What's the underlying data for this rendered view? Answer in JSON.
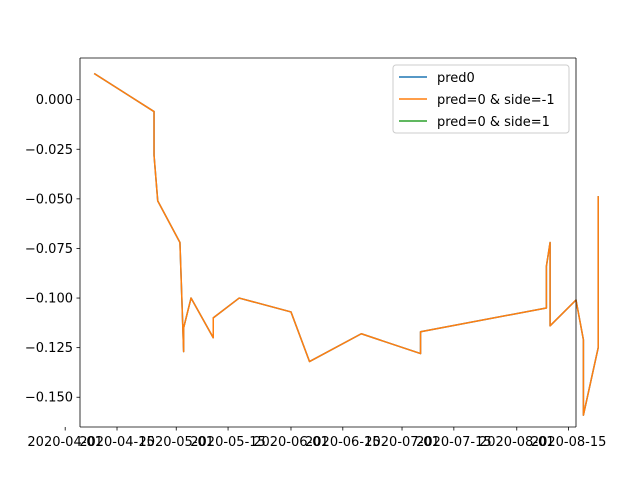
{
  "chart_data": {
    "type": "line",
    "title": "",
    "xlabel": "",
    "ylabel": "",
    "grid": false,
    "legend_position": "top-right",
    "xlim": [
      "2020-04-05",
      "2020-08-17"
    ],
    "ylim": [
      -0.165,
      0.021
    ],
    "x_ticks": [
      {
        "date": "2020-04-01",
        "label": "2020-04-01"
      },
      {
        "date": "2020-04-15",
        "label": "2020-04-15"
      },
      {
        "date": "2020-05-01",
        "label": "2020-05-01"
      },
      {
        "date": "2020-05-15",
        "label": "2020-05-15"
      },
      {
        "date": "2020-06-01",
        "label": "2020-06-01"
      },
      {
        "date": "2020-06-15",
        "label": "2020-06-15"
      },
      {
        "date": "2020-07-01",
        "label": "2020-07-01"
      },
      {
        "date": "2020-07-15",
        "label": "2020-07-15"
      },
      {
        "date": "2020-08-01",
        "label": "2020-08-01"
      },
      {
        "date": "2020-08-15",
        "label": "2020-08-15"
      }
    ],
    "y_ticks": [
      {
        "value": 0.0,
        "label": "0.000"
      },
      {
        "value": -0.025,
        "label": "−0.025"
      },
      {
        "value": -0.05,
        "label": "−0.050"
      },
      {
        "value": -0.075,
        "label": "−0.075"
      },
      {
        "value": -0.1,
        "label": "−0.100"
      },
      {
        "value": -0.125,
        "label": "−0.125"
      },
      {
        "value": -0.15,
        "label": "−0.150"
      }
    ],
    "series": [
      {
        "name": "pred0",
        "color": "#1f77b4",
        "points": [
          {
            "x": "2020-04-09",
            "y": 0.013
          },
          {
            "x": "2020-04-25",
            "y": -0.006
          },
          {
            "x": "2020-04-25",
            "y": -0.028
          },
          {
            "x": "2020-04-26",
            "y": -0.051
          },
          {
            "x": "2020-05-02",
            "y": -0.072
          },
          {
            "x": "2020-05-03",
            "y": -0.127
          },
          {
            "x": "2020-05-03",
            "y": -0.115
          },
          {
            "x": "2020-05-05",
            "y": -0.1
          },
          {
            "x": "2020-05-11",
            "y": -0.12
          },
          {
            "x": "2020-05-11",
            "y": -0.11
          },
          {
            "x": "2020-05-18",
            "y": -0.1
          },
          {
            "x": "2020-06-01",
            "y": -0.107
          },
          {
            "x": "2020-06-06",
            "y": -0.132
          },
          {
            "x": "2020-06-20",
            "y": -0.118
          },
          {
            "x": "2020-07-06",
            "y": -0.128
          },
          {
            "x": "2020-07-06",
            "y": -0.117
          },
          {
            "x": "2020-08-09",
            "y": -0.105
          },
          {
            "x": "2020-08-09",
            "y": -0.084
          },
          {
            "x": "2020-08-10",
            "y": -0.072
          },
          {
            "x": "2020-08-10",
            "y": -0.098
          },
          {
            "x": "2020-08-10",
            "y": -0.085
          },
          {
            "x": "2020-08-10",
            "y": -0.114
          },
          {
            "x": "2020-08-17",
            "y": -0.101
          },
          {
            "x": "2020-08-19",
            "y": -0.121
          },
          {
            "x": "2020-08-19",
            "y": -0.159
          },
          {
            "x": "2020-08-23",
            "y": -0.125
          },
          {
            "x": "2020-08-23",
            "y": -0.049
          }
        ]
      },
      {
        "name": "pred=0 & side=-1",
        "color": "#ff7f0e",
        "points": [
          {
            "x": "2020-04-09",
            "y": 0.013
          },
          {
            "x": "2020-04-25",
            "y": -0.006
          },
          {
            "x": "2020-04-25",
            "y": -0.028
          },
          {
            "x": "2020-04-26",
            "y": -0.051
          },
          {
            "x": "2020-05-02",
            "y": -0.072
          },
          {
            "x": "2020-05-03",
            "y": -0.127
          },
          {
            "x": "2020-05-03",
            "y": -0.115
          },
          {
            "x": "2020-05-05",
            "y": -0.1
          },
          {
            "x": "2020-05-11",
            "y": -0.12
          },
          {
            "x": "2020-05-11",
            "y": -0.11
          },
          {
            "x": "2020-05-18",
            "y": -0.1
          },
          {
            "x": "2020-06-01",
            "y": -0.107
          },
          {
            "x": "2020-06-06",
            "y": -0.132
          },
          {
            "x": "2020-06-20",
            "y": -0.118
          },
          {
            "x": "2020-07-06",
            "y": -0.128
          },
          {
            "x": "2020-07-06",
            "y": -0.117
          },
          {
            "x": "2020-08-09",
            "y": -0.105
          },
          {
            "x": "2020-08-09",
            "y": -0.084
          },
          {
            "x": "2020-08-10",
            "y": -0.072
          },
          {
            "x": "2020-08-10",
            "y": -0.098
          },
          {
            "x": "2020-08-10",
            "y": -0.085
          },
          {
            "x": "2020-08-10",
            "y": -0.114
          },
          {
            "x": "2020-08-17",
            "y": -0.101
          },
          {
            "x": "2020-08-19",
            "y": -0.121
          },
          {
            "x": "2020-08-19",
            "y": -0.159
          },
          {
            "x": "2020-08-23",
            "y": -0.125
          },
          {
            "x": "2020-08-23",
            "y": -0.049
          }
        ]
      },
      {
        "name": "pred=0 & side=1",
        "color": "#2ca02c",
        "points": []
      }
    ]
  }
}
